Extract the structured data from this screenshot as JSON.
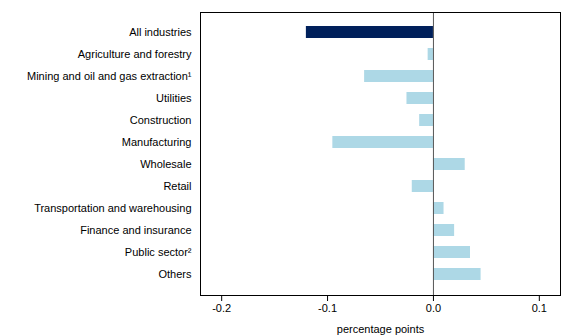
{
  "chart_data": {
    "type": "bar",
    "orientation": "horizontal",
    "categories": [
      "Others",
      "Public sector²",
      "Finance and insurance",
      "Transportation and warehousing",
      "Retail",
      "Wholesale",
      "Manufacturing",
      "Construction",
      "Utilities",
      "Mining and oil and gas extraction¹",
      "Agriculture and forestry",
      "All industries"
    ],
    "values": [
      0.045,
      0.035,
      0.02,
      0.01,
      -0.02,
      0.03,
      -0.095,
      -0.013,
      -0.025,
      -0.065,
      -0.005,
      -0.12
    ],
    "colors": [
      "#add8e6",
      "#add8e6",
      "#add8e6",
      "#add8e6",
      "#add8e6",
      "#add8e6",
      "#add8e6",
      "#add8e6",
      "#add8e6",
      "#add8e6",
      "#add8e6",
      "#00205b"
    ],
    "xlabel": "percentage points",
    "xlim": [
      -0.22,
      0.12
    ],
    "xticks": [
      -0.2,
      -0.1,
      {
        "value": 0,
        "label": "0.0"
      },
      0.1
    ],
    "grid": false
  }
}
